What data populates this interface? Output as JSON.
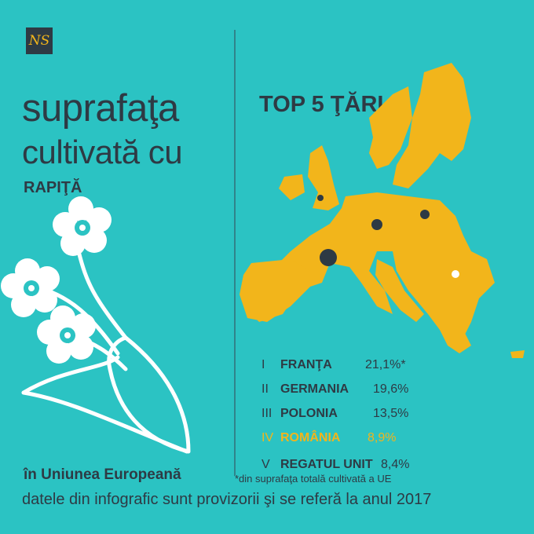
{
  "logo": {
    "text": "NS"
  },
  "title": {
    "line1": "suprafaţa",
    "line2": "cultivată cu",
    "line3": "RAPIŢĂ"
  },
  "subtitle_bottom": "în Uniunea Europeană",
  "top_header": "TOP 5 ŢĂRI",
  "ranking": [
    {
      "rank": "I",
      "country": "FRANŢA",
      "value": "21,1%*",
      "highlight": false
    },
    {
      "rank": "II",
      "country": "GERMANIA",
      "value": "19,6%",
      "highlight": false
    },
    {
      "rank": "III",
      "country": "POLONIA",
      "value": "13,5%",
      "highlight": false
    },
    {
      "rank": "IV",
      "country": "ROMÂNIA",
      "value": "8,9%",
      "highlight": true
    },
    {
      "rank": "V",
      "country": "REGATUL UNIT",
      "value": "8,4%",
      "highlight": false
    }
  ],
  "note": "*din suprafaţa totală cultivată a UE",
  "footer": "datele din infografic sunt provizorii şi se referă la anul 2017",
  "colors": {
    "background": "#2bc3c3",
    "map": "#f2b51b",
    "text": "#2e3a44",
    "highlight": "#f2b51b",
    "romania_dot": "#ffffff"
  },
  "icons": [
    "logo",
    "europe-map",
    "rapeseed-flower-illustration"
  ]
}
